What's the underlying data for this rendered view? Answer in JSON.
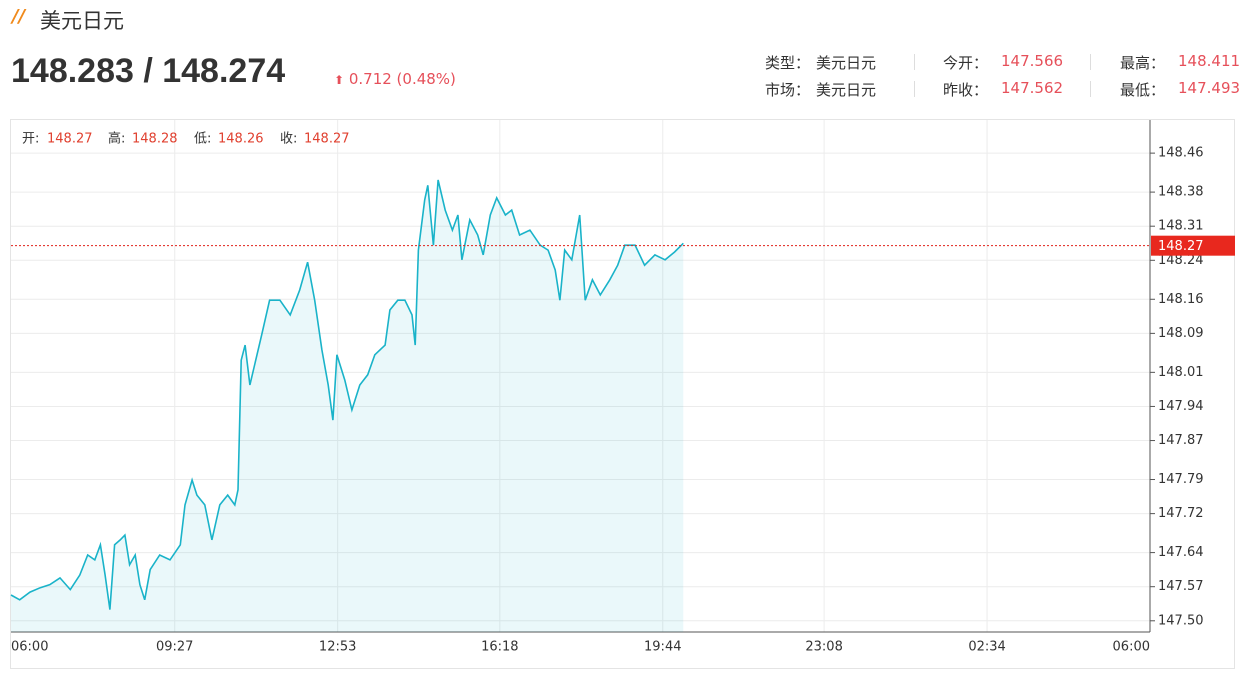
{
  "header": {
    "title": "美元日元",
    "price": "148.283 / 148.274",
    "change": "0.712 (0.48%)",
    "info": [
      {
        "label": "类型：",
        "value": "美元日元"
      },
      {
        "label": "今开：",
        "value": "147.566"
      },
      {
        "label": "最高：",
        "value": "148.411"
      },
      {
        "label": "市场：",
        "value": "美元日元"
      },
      {
        "label": "昨收：",
        "value": "147.562"
      },
      {
        "label": "最低：",
        "value": "147.493"
      }
    ]
  },
  "chart_data": {
    "type": "line",
    "ohlc": [
      {
        "label": "开:",
        "value": 148.27
      },
      {
        "label": "高:",
        "value": 148.28
      },
      {
        "label": "低:",
        "value": 148.26
      },
      {
        "label": "收:",
        "value": 148.27
      }
    ],
    "last_price": 148.27,
    "xlim": [
      0,
      1440
    ],
    "xticks": [
      {
        "value": 0,
        "label": "06:00"
      },
      {
        "value": 207,
        "label": "09:27"
      },
      {
        "value": 413,
        "label": "12:53"
      },
      {
        "value": 618,
        "label": "16:18"
      },
      {
        "value": 824,
        "label": "19:44"
      },
      {
        "value": 1028,
        "label": "23:08"
      },
      {
        "value": 1234,
        "label": "02:34"
      },
      {
        "value": 1440,
        "label": "06:00"
      }
    ],
    "ylim": [
      147.477,
      148.528
    ],
    "yticks": [
      {
        "value": 147.5,
        "label": "147.50"
      },
      147.57,
      147.64,
      147.72,
      147.79,
      147.87,
      147.94,
      148.01,
      148.09,
      148.16,
      148.24,
      148.31,
      148.38,
      148.46
    ],
    "grid": true,
    "series": [
      {
        "color": "#1ab3c9",
        "x": [
          0,
          11,
          24,
          37,
          49,
          62,
          75,
          87,
          97,
          106,
          113,
          119,
          125,
          131,
          138,
          144,
          150,
          157,
          163,
          169,
          176,
          188,
          201,
          214,
          220,
          229,
          235,
          245,
          254,
          264,
          274,
          283,
          287,
          291,
          296,
          302,
          308,
          317,
          327,
          340,
          353,
          365,
          375,
          384,
          393,
          401,
          407,
          412,
          422,
          431,
          441,
          451,
          460,
          473,
          479,
          489,
          498,
          507,
          511,
          515,
          523,
          527,
          534,
          540,
          549,
          558,
          565,
          570,
          580,
          590,
          597,
          606,
          614,
          625,
          633,
          643,
          656,
          669,
          679,
          688,
          694,
          700,
          709,
          719,
          726,
          735,
          745,
          757,
          767,
          776,
          789,
          801,
          814,
          827,
          839,
          850
        ],
        "values": [
          147.553,
          147.543,
          147.559,
          147.568,
          147.574,
          147.588,
          147.564,
          147.594,
          147.635,
          147.625,
          147.656,
          147.594,
          147.523,
          147.656,
          147.666,
          147.676,
          147.615,
          147.635,
          147.574,
          147.543,
          147.605,
          147.635,
          147.625,
          147.656,
          147.738,
          147.789,
          147.758,
          147.738,
          147.666,
          147.738,
          147.758,
          147.738,
          147.769,
          148.035,
          148.066,
          147.984,
          148.025,
          148.087,
          148.158,
          148.158,
          148.128,
          148.179,
          148.236,
          148.158,
          148.056,
          147.984,
          147.912,
          148.046,
          147.994,
          147.933,
          147.984,
          148.005,
          148.046,
          148.066,
          148.138,
          148.158,
          148.158,
          148.128,
          148.066,
          148.261,
          148.364,
          148.394,
          148.271,
          148.405,
          148.343,
          148.302,
          148.333,
          148.241,
          148.323,
          148.292,
          148.251,
          148.333,
          148.368,
          148.333,
          148.343,
          148.292,
          148.302,
          148.271,
          148.261,
          148.22,
          148.158,
          148.261,
          148.241,
          148.333,
          148.158,
          148.2,
          148.169,
          148.2,
          148.23,
          148.271,
          148.271,
          148.23,
          148.251,
          148.241,
          148.257,
          148.275
        ]
      }
    ]
  }
}
